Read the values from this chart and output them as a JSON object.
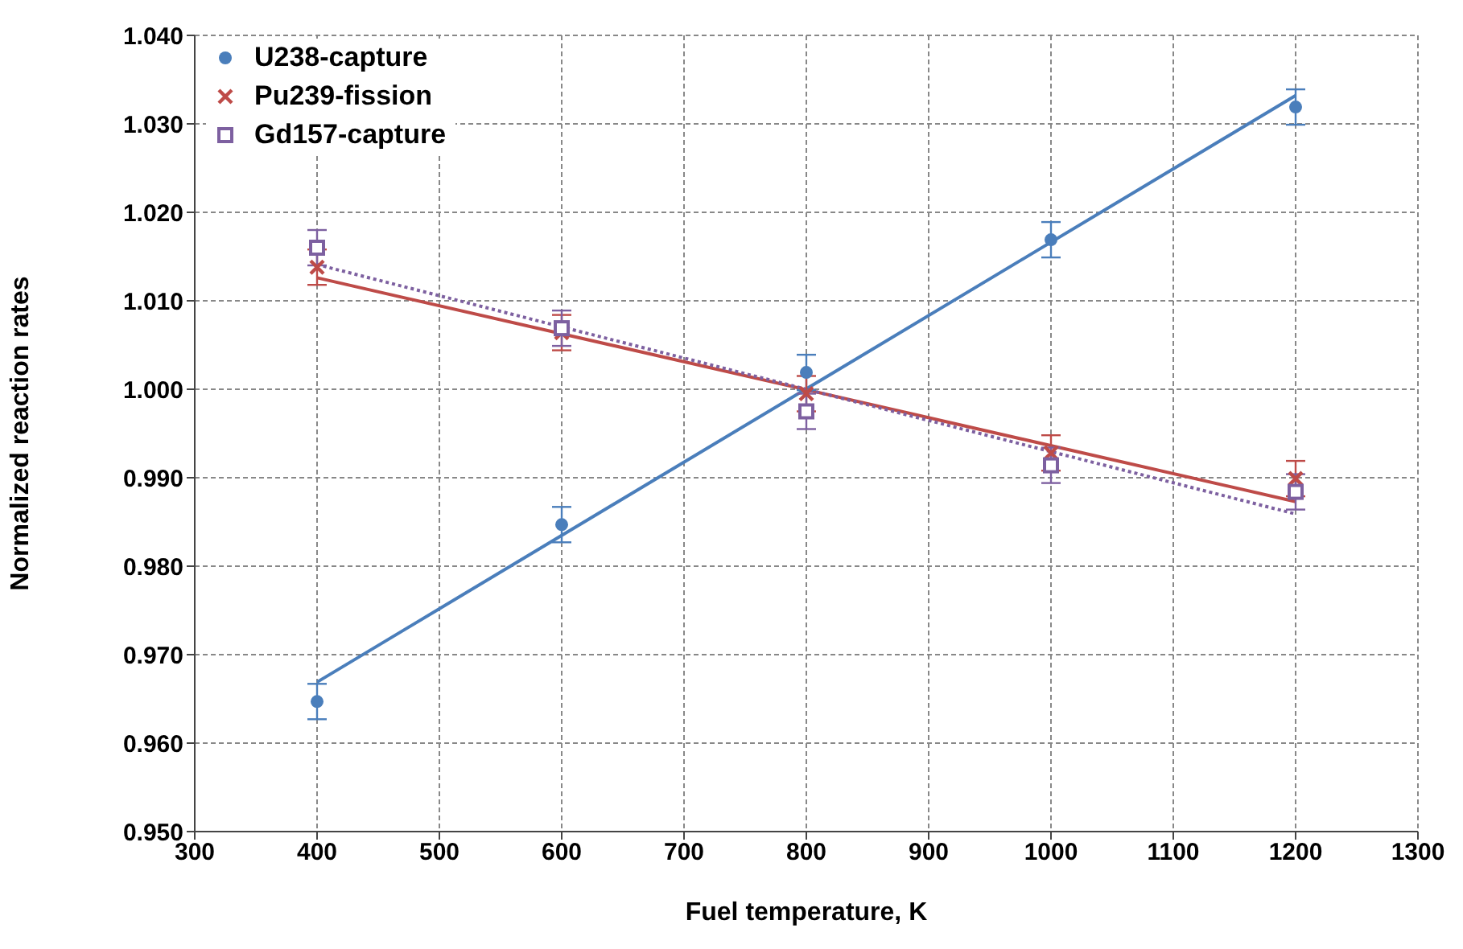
{
  "chart_data": {
    "type": "scatter",
    "xlabel": "Fuel temperature, K",
    "ylabel": "Normalized reaction rates",
    "xlim": [
      300,
      1300
    ],
    "xticks": [
      300,
      400,
      500,
      600,
      700,
      800,
      900,
      1000,
      1100,
      1200,
      1300
    ],
    "ylim": [
      0.95,
      1.04
    ],
    "yticks": [
      {
        "value": 0.95,
        "label": "0.950"
      },
      {
        "value": 0.96,
        "label": "0.960"
      },
      {
        "value": 0.97,
        "label": "0.970"
      },
      {
        "value": 0.98,
        "label": "0.980"
      },
      {
        "value": 0.99,
        "label": "0.990"
      },
      {
        "value": 1.0,
        "label": "1.000"
      },
      {
        "value": 1.01,
        "label": "1.010"
      },
      {
        "value": 1.02,
        "label": "1.020"
      },
      {
        "value": 1.03,
        "label": "1.030"
      },
      {
        "value": 1.04,
        "label": "1.040"
      }
    ],
    "grid": true,
    "legend": "top left",
    "series": [
      {
        "type": "line",
        "color": "#4a7ebb",
        "x": [
          400,
          1200
        ],
        "values": [
          0.9669,
          1.0332
        ],
        "line_style": "solid"
      },
      {
        "type": "line",
        "color": "#be4b48",
        "x": [
          400,
          1200
        ],
        "values": [
          1.0126,
          0.9873
        ],
        "line_style": "solid"
      },
      {
        "type": "line",
        "color": "#7d60a0",
        "x": [
          400,
          1200
        ],
        "values": [
          1.0141,
          0.9859
        ],
        "line_style": "dotted"
      },
      {
        "name": "U238-capture",
        "color": "#4a7ebb",
        "x": [
          400,
          600,
          800,
          1000,
          1200
        ],
        "values": [
          0.9647,
          0.9847,
          1.0019,
          1.0169,
          1.0319
        ],
        "errors": [
          0.002,
          0.002,
          0.002,
          0.002,
          0.002
        ],
        "marker": "circle"
      },
      {
        "name": "Pu239-fission",
        "color": "#be4b48",
        "x": [
          400,
          600,
          800,
          1000,
          1200
        ],
        "values": [
          1.0138,
          1.0064,
          0.9995,
          0.9928,
          0.9899
        ],
        "errors": [
          0.002,
          0.002,
          0.002,
          0.002,
          0.002
        ],
        "marker": "cross"
      },
      {
        "name": "Gd157-capture",
        "color": "#7d60a0",
        "x": [
          400,
          600,
          800,
          1000,
          1200
        ],
        "values": [
          1.016,
          1.0069,
          0.9975,
          0.9914,
          0.9884
        ],
        "errors": [
          0.002,
          0.002,
          0.002,
          0.002,
          0.002
        ],
        "marker": "square"
      }
    ]
  }
}
